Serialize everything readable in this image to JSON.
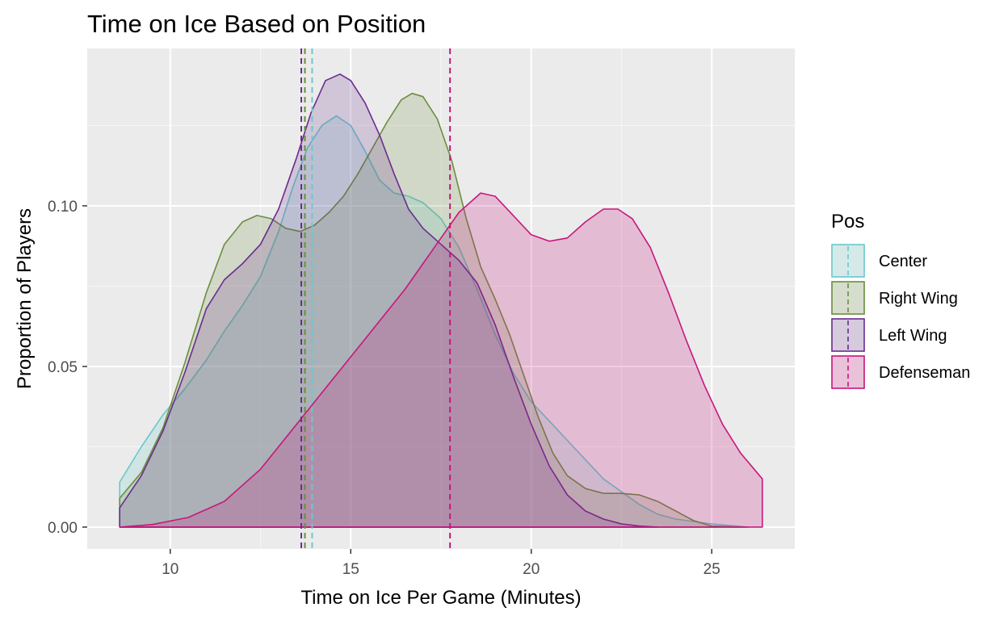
{
  "chart_data": {
    "type": "area",
    "title": "Time on Ice Based on Position",
    "xlabel": "Time on Ice Per Game (Minutes)",
    "ylabel": "Proportion of Players",
    "xlim": [
      7.7,
      27.3
    ],
    "ylim": [
      -0.0068,
      0.149
    ],
    "x_ticks": [
      10,
      15,
      20,
      25
    ],
    "y_ticks": [
      0.0,
      0.05,
      0.1
    ],
    "x_tick_labels": [
      "10",
      "15",
      "20",
      "25"
    ],
    "y_tick_labels": [
      "0.00",
      "0.05",
      "0.10"
    ],
    "grid": true,
    "panel_background": "#ebebeb",
    "legend": {
      "title": "Pos",
      "placement": "right"
    },
    "series": [
      {
        "name": "Center",
        "color": "#6ac9c9",
        "fill": "rgba(106,201,201,0.20)",
        "mean": 13.93,
        "points": [
          [
            8.6,
            0.014
          ],
          [
            9.2,
            0.025
          ],
          [
            9.8,
            0.035
          ],
          [
            10.4,
            0.043
          ],
          [
            11.0,
            0.052
          ],
          [
            11.5,
            0.061
          ],
          [
            12.0,
            0.069
          ],
          [
            12.5,
            0.078
          ],
          [
            13.0,
            0.092
          ],
          [
            13.4,
            0.106
          ],
          [
            13.8,
            0.118
          ],
          [
            14.2,
            0.125
          ],
          [
            14.6,
            0.128
          ],
          [
            15.0,
            0.125
          ],
          [
            15.4,
            0.117
          ],
          [
            15.8,
            0.108
          ],
          [
            16.2,
            0.104
          ],
          [
            16.6,
            0.103
          ],
          [
            17.0,
            0.101
          ],
          [
            17.5,
            0.096
          ],
          [
            18.0,
            0.087
          ],
          [
            18.5,
            0.074
          ],
          [
            19.0,
            0.06
          ],
          [
            19.5,
            0.048
          ],
          [
            20.0,
            0.039
          ],
          [
            20.5,
            0.033
          ],
          [
            21.0,
            0.027
          ],
          [
            21.5,
            0.021
          ],
          [
            22.0,
            0.015
          ],
          [
            22.5,
            0.011
          ],
          [
            23.0,
            0.007
          ],
          [
            23.5,
            0.004
          ],
          [
            24.0,
            0.0025
          ],
          [
            25.0,
            0.001
          ],
          [
            26.0,
            0.0
          ]
        ]
      },
      {
        "name": "Right Wing",
        "color": "#6b8e3e",
        "fill": "rgba(107,142,62,0.20)",
        "mean": 13.73,
        "points": [
          [
            8.6,
            0.009
          ],
          [
            9.2,
            0.017
          ],
          [
            9.8,
            0.031
          ],
          [
            10.4,
            0.051
          ],
          [
            11.0,
            0.073
          ],
          [
            11.5,
            0.088
          ],
          [
            12.0,
            0.095
          ],
          [
            12.4,
            0.097
          ],
          [
            12.8,
            0.096
          ],
          [
            13.2,
            0.093
          ],
          [
            13.6,
            0.092
          ],
          [
            14.0,
            0.094
          ],
          [
            14.4,
            0.098
          ],
          [
            14.8,
            0.103
          ],
          [
            15.2,
            0.11
          ],
          [
            15.6,
            0.118
          ],
          [
            16.0,
            0.126
          ],
          [
            16.4,
            0.133
          ],
          [
            16.7,
            0.135
          ],
          [
            17.0,
            0.134
          ],
          [
            17.4,
            0.127
          ],
          [
            17.8,
            0.114
          ],
          [
            18.2,
            0.096
          ],
          [
            18.6,
            0.081
          ],
          [
            19.0,
            0.071
          ],
          [
            19.4,
            0.06
          ],
          [
            19.8,
            0.047
          ],
          [
            20.2,
            0.034
          ],
          [
            20.6,
            0.023
          ],
          [
            21.0,
            0.016
          ],
          [
            21.5,
            0.012
          ],
          [
            22.0,
            0.0105
          ],
          [
            22.5,
            0.0105
          ],
          [
            23.0,
            0.01
          ],
          [
            23.5,
            0.008
          ],
          [
            24.0,
            0.005
          ],
          [
            24.5,
            0.002
          ],
          [
            25.0,
            0.0003
          ],
          [
            26.0,
            0.0
          ]
        ]
      },
      {
        "name": "Left Wing",
        "color": "#6a2c8e",
        "fill": "rgba(106,44,142,0.20)",
        "mean": 13.63,
        "points": [
          [
            8.6,
            0.006
          ],
          [
            9.2,
            0.016
          ],
          [
            9.8,
            0.03
          ],
          [
            10.4,
            0.048
          ],
          [
            11.0,
            0.068
          ],
          [
            11.5,
            0.077
          ],
          [
            12.0,
            0.082
          ],
          [
            12.5,
            0.088
          ],
          [
            13.0,
            0.099
          ],
          [
            13.5,
            0.115
          ],
          [
            13.9,
            0.129
          ],
          [
            14.3,
            0.139
          ],
          [
            14.7,
            0.141
          ],
          [
            15.0,
            0.139
          ],
          [
            15.4,
            0.132
          ],
          [
            15.8,
            0.122
          ],
          [
            16.2,
            0.11
          ],
          [
            16.6,
            0.099
          ],
          [
            17.0,
            0.093
          ],
          [
            17.5,
            0.088
          ],
          [
            18.0,
            0.083
          ],
          [
            18.5,
            0.076
          ],
          [
            19.0,
            0.063
          ],
          [
            19.5,
            0.047
          ],
          [
            20.0,
            0.032
          ],
          [
            20.5,
            0.019
          ],
          [
            21.0,
            0.01
          ],
          [
            21.5,
            0.005
          ],
          [
            22.0,
            0.0025
          ],
          [
            22.5,
            0.001
          ],
          [
            23.0,
            0.0003
          ],
          [
            23.5,
            0.0
          ]
        ]
      },
      {
        "name": "Defenseman",
        "color": "#c8167e",
        "fill": "rgba(200,22,126,0.22)",
        "mean": 17.75,
        "points": [
          [
            8.6,
            0.0
          ],
          [
            9.5,
            0.0008
          ],
          [
            10.5,
            0.003
          ],
          [
            11.5,
            0.008
          ],
          [
            12.5,
            0.018
          ],
          [
            13.5,
            0.032
          ],
          [
            14.5,
            0.046
          ],
          [
            15.5,
            0.06
          ],
          [
            16.5,
            0.074
          ],
          [
            17.5,
            0.09
          ],
          [
            18.0,
            0.098
          ],
          [
            18.6,
            0.104
          ],
          [
            19.0,
            0.103
          ],
          [
            19.5,
            0.097
          ],
          [
            20.0,
            0.091
          ],
          [
            20.5,
            0.089
          ],
          [
            21.0,
            0.09
          ],
          [
            21.5,
            0.095
          ],
          [
            22.0,
            0.099
          ],
          [
            22.4,
            0.099
          ],
          [
            22.8,
            0.096
          ],
          [
            23.3,
            0.087
          ],
          [
            23.8,
            0.073
          ],
          [
            24.3,
            0.058
          ],
          [
            24.8,
            0.044
          ],
          [
            25.3,
            0.032
          ],
          [
            25.8,
            0.023
          ],
          [
            26.4,
            0.015
          ]
        ]
      }
    ]
  }
}
